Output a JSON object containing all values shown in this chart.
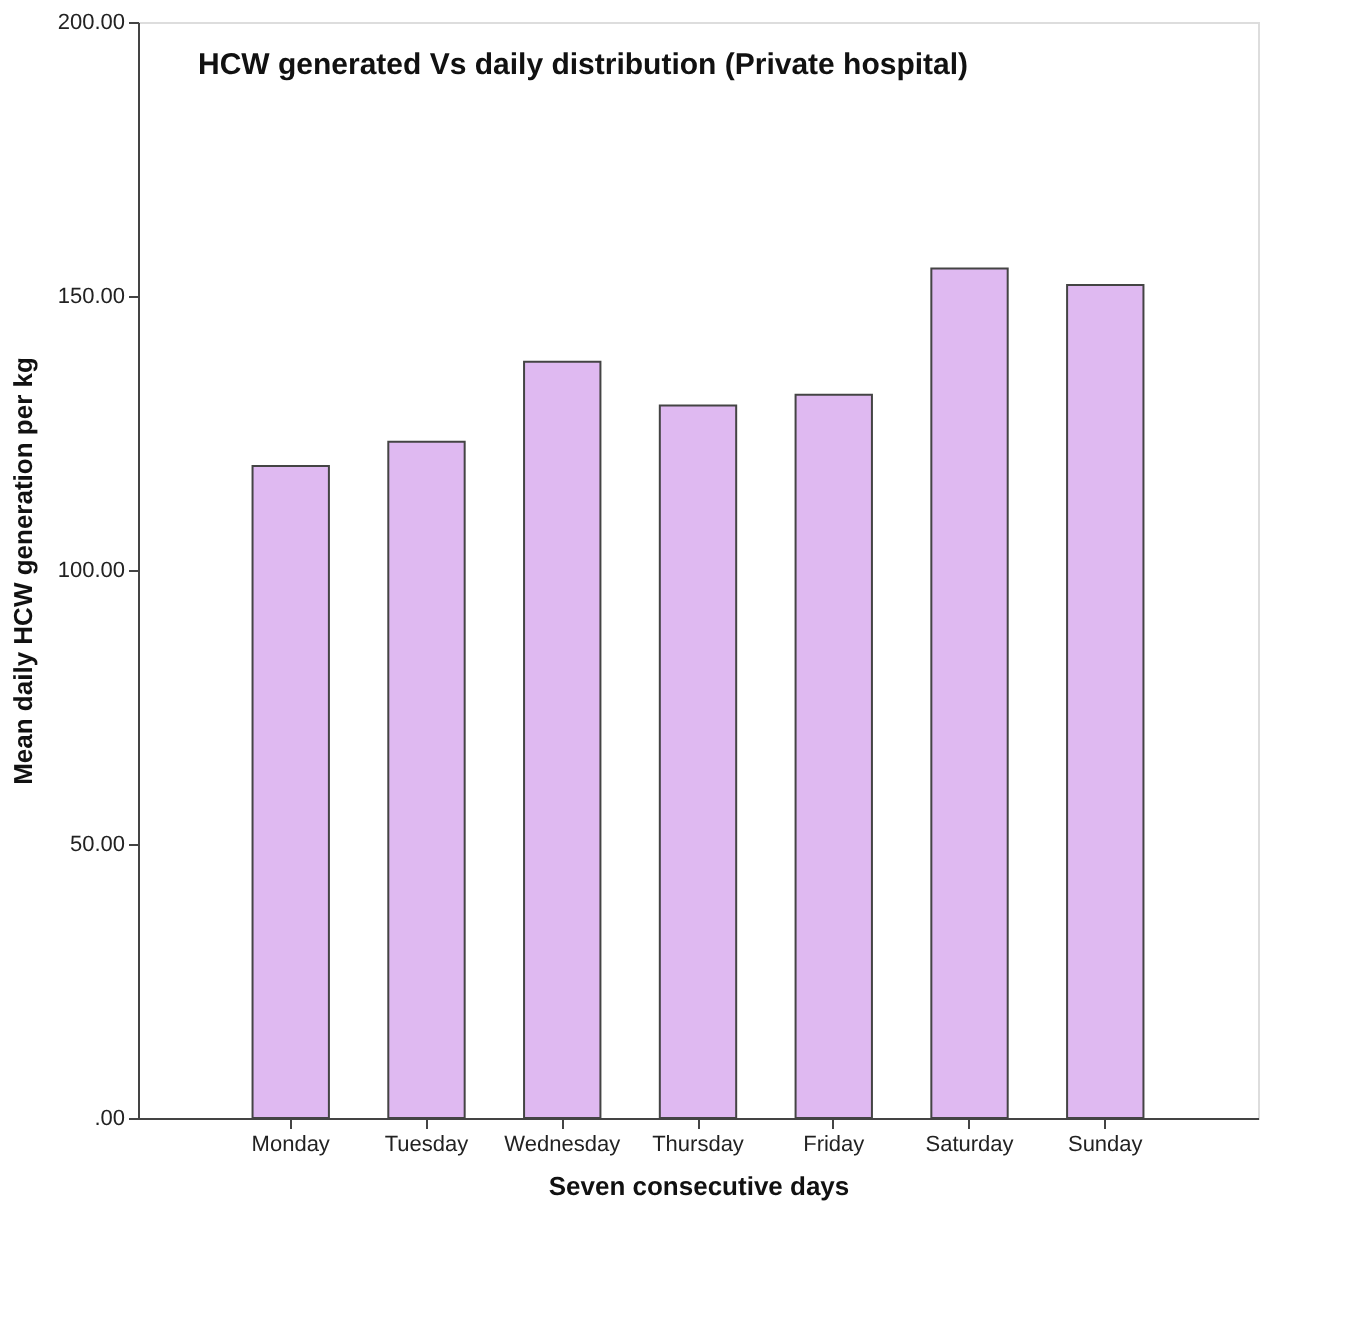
{
  "chart_data": {
    "type": "bar",
    "title": "HCW generated Vs daily distribution (Private hospital)",
    "xlabel": "Seven consecutive days",
    "ylabel": "Mean daily HCW generation per kg",
    "categories": [
      "Monday",
      "Tuesday",
      "Wednesday",
      "Thursday",
      "Friday",
      "Saturday",
      "Sunday"
    ],
    "values": [
      119,
      123.4,
      138,
      130,
      132,
      155,
      152
    ],
    "color": "#dfb9f1",
    "ylim": [
      0,
      200
    ],
    "yticks": [
      {
        "value": 0,
        "label": ".00"
      },
      {
        "value": 50,
        "label": "50.00"
      },
      {
        "value": 100,
        "label": "100.00"
      },
      {
        "value": 150,
        "label": "150.00"
      },
      {
        "value": 200,
        "label": "200.00"
      }
    ],
    "grid": false
  }
}
